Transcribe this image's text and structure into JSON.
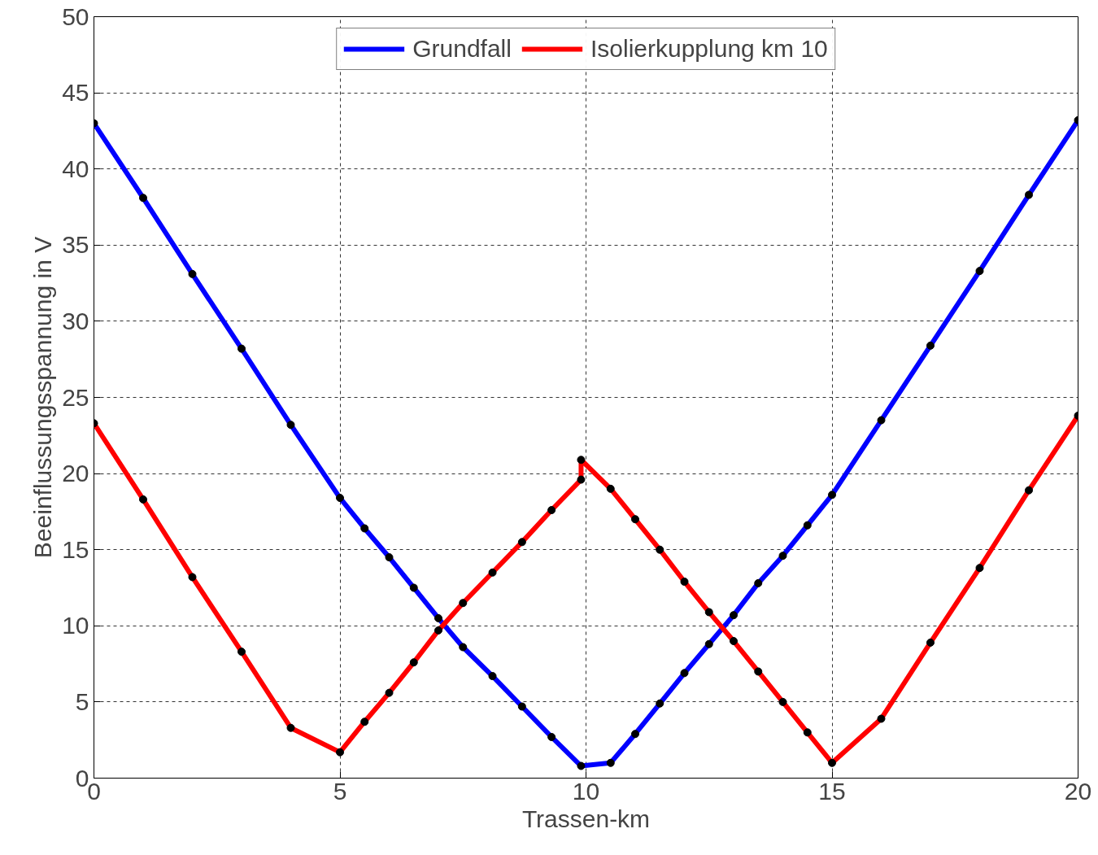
{
  "chart_data": {
    "type": "line",
    "xlabel": "Trassen-km",
    "ylabel": "Beeinflussungsspannung in V",
    "xlim": [
      0,
      20
    ],
    "ylim": [
      0,
      50
    ],
    "xticks": [
      0,
      5,
      10,
      15,
      20
    ],
    "yticks": [
      0,
      5,
      10,
      15,
      20,
      25,
      30,
      35,
      40,
      45,
      50
    ],
    "grid": true,
    "legend": "top",
    "marker": "circle",
    "line_style": "solid",
    "series": [
      {
        "name": "Grundfall",
        "color": "#0000ff",
        "x": [
          0,
          1,
          2,
          3,
          4,
          5,
          5.5,
          6,
          6.5,
          7,
          7.5,
          8.1,
          8.7,
          9.3,
          9.9,
          10.5,
          11,
          11.5,
          12,
          12.5,
          13,
          13.5,
          14,
          14.5,
          15,
          16,
          17,
          18,
          19,
          20
        ],
        "values": [
          43.0,
          38.1,
          33.1,
          28.2,
          23.2,
          18.4,
          16.4,
          14.5,
          12.5,
          10.5,
          8.6,
          6.7,
          4.7,
          2.7,
          0.8,
          1.0,
          2.9,
          4.9,
          6.9,
          8.8,
          10.7,
          12.8,
          14.6,
          16.6,
          18.6,
          23.5,
          28.4,
          33.3,
          38.3,
          43.2
        ]
      },
      {
        "name": "Isolierkupplung km 10",
        "color": "#ff0000",
        "x": [
          0,
          1,
          2,
          3,
          4,
          5,
          5.5,
          6,
          6.5,
          7,
          7.5,
          8.1,
          8.7,
          9.3,
          9.9,
          9.9,
          10.5,
          11,
          11.5,
          12,
          12.5,
          13,
          13.5,
          14,
          14.5,
          15,
          16,
          17,
          18,
          19,
          20
        ],
        "values": [
          23.3,
          18.3,
          13.2,
          8.3,
          3.3,
          1.7,
          3.7,
          5.6,
          7.6,
          9.7,
          11.5,
          13.5,
          15.5,
          17.6,
          19.6,
          20.9,
          19.0,
          17.0,
          15.0,
          12.9,
          10.9,
          9.0,
          7.0,
          5.0,
          3.0,
          1.0,
          3.9,
          8.9,
          13.8,
          18.9,
          23.8
        ]
      }
    ]
  }
}
